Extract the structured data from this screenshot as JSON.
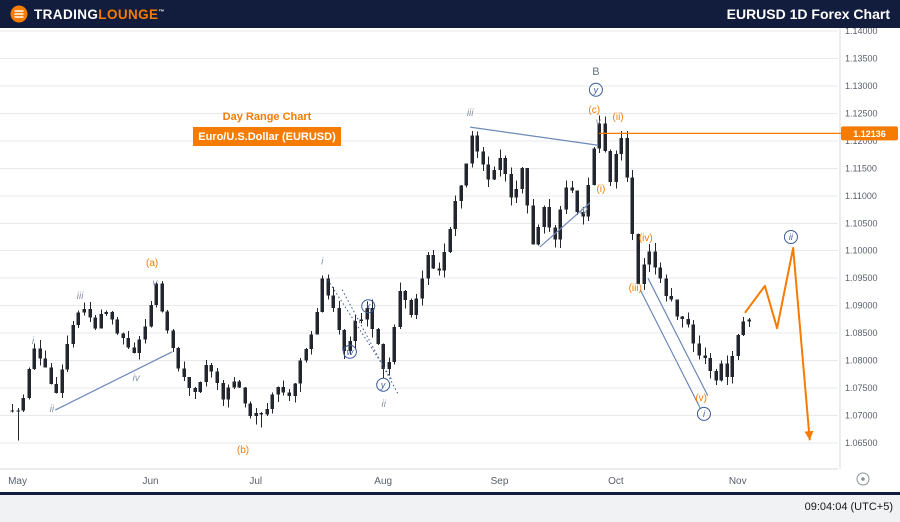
{
  "header": {
    "logo": {
      "part1": "TRADING",
      "part2": "LOUNGE",
      "tm": "™",
      "icon": "tradinglounge-logo-icon"
    },
    "title": "EURUSD 1D Forex Chart"
  },
  "overlays": {
    "day_range_label": "Day Range Chart",
    "instrument_label": "Euro/U.S.Dollar (EURUSD)"
  },
  "footer": {
    "timestamp": "09:04:04 (UTC+5)"
  },
  "colors": {
    "accent": "#F57C00",
    "header_bg": "#121C3D",
    "candle": "#23262E",
    "grid": "#E8E9EC",
    "axis_line": "#D6D8DC",
    "axis_text": "#5A5F6A",
    "wave_gray": "#8A93A6",
    "wave_dark": "#6A7280",
    "navy": "#3D5A99",
    "trendline": "#6E88B8",
    "footer_bg": "#F1F2F4"
  },
  "chart_data": {
    "type": "candlestick",
    "title": "EURUSD 1D Forex Chart",
    "instrument": "Euro/U.S.Dollar (EURUSD)",
    "timeframe": "1D",
    "subtitle": "Day Range Chart",
    "grid": "horizontal",
    "y_axis": {
      "min": 1.065,
      "max": 1.14,
      "tick_step": 0.005,
      "ticks": [
        "1.14000",
        "1.13500",
        "1.13000",
        "1.12500",
        "1.12000",
        "1.11500",
        "1.11000",
        "1.10500",
        "1.10000",
        "1.09500",
        "1.09000",
        "1.08500",
        "1.08000",
        "1.07500",
        "1.07000",
        "1.06500"
      ]
    },
    "x_axis": {
      "months": [
        {
          "label": "May",
          "i": 1
        },
        {
          "label": "Jun",
          "i": 25
        },
        {
          "label": "Jul",
          "i": 44
        },
        {
          "label": "Aug",
          "i": 67
        },
        {
          "label": "Sep",
          "i": 88
        },
        {
          "label": "Oct",
          "i": 109
        },
        {
          "label": "Nov",
          "i": 131
        }
      ]
    },
    "current_price": {
      "value": "1.12136",
      "from_index": 106
    },
    "candles": {
      "count": 134,
      "noise": 0.0011,
      "wick": 0.0016,
      "anchors": [
        [
          0,
          1.072
        ],
        [
          1,
          1.07
        ],
        [
          4,
          1.0825
        ],
        [
          8,
          1.0745
        ],
        [
          12,
          1.0895
        ],
        [
          15,
          1.086
        ],
        [
          17,
          1.089
        ],
        [
          20,
          1.0835
        ],
        [
          22,
          1.081
        ],
        [
          24,
          1.087
        ],
        [
          26,
          1.094
        ],
        [
          27,
          1.09
        ],
        [
          29,
          1.0825
        ],
        [
          30,
          1.0775
        ],
        [
          33,
          1.0745
        ],
        [
          35,
          1.079
        ],
        [
          38,
          1.073
        ],
        [
          40,
          1.076
        ],
        [
          43,
          1.0705
        ],
        [
          45,
          1.0695
        ],
        [
          48,
          1.076
        ],
        [
          50,
          1.074
        ],
        [
          53,
          1.082
        ],
        [
          55,
          1.088
        ],
        [
          56,
          1.095
        ],
        [
          58,
          1.09
        ],
        [
          60,
          1.0825
        ],
        [
          64,
          1.0905
        ],
        [
          67,
          1.079
        ],
        [
          68,
          1.08
        ],
        [
          70,
          1.093
        ],
        [
          72,
          1.089
        ],
        [
          75,
          1.099
        ],
        [
          77,
          1.096
        ],
        [
          79,
          1.105
        ],
        [
          81,
          1.112
        ],
        [
          83,
          1.1215
        ],
        [
          84,
          1.119
        ],
        [
          86,
          1.113
        ],
        [
          88,
          1.117
        ],
        [
          90,
          1.109
        ],
        [
          92,
          1.115
        ],
        [
          94,
          1.1005
        ],
        [
          96,
          1.107
        ],
        [
          98,
          1.103
        ],
        [
          100,
          1.112
        ],
        [
          102,
          1.108
        ],
        [
          103,
          1.107
        ],
        [
          104,
          1.112
        ],
        [
          106,
          1.1235
        ],
        [
          107,
          1.118
        ],
        [
          108,
          1.112
        ],
        [
          110,
          1.1212
        ],
        [
          111,
          1.113
        ],
        [
          112,
          1.104
        ],
        [
          113,
          1.095
        ],
        [
          115,
          1.1
        ],
        [
          117,
          1.094
        ],
        [
          119,
          1.09
        ],
        [
          121,
          1.087
        ],
        [
          123,
          1.084
        ],
        [
          125,
          1.08
        ],
        [
          127,
          1.077
        ],
        [
          128,
          1.0785
        ],
        [
          129,
          1.0775
        ],
        [
          130,
          1.081
        ],
        [
          131,
          1.084
        ],
        [
          132,
          1.0865
        ],
        [
          133,
          1.0885
        ]
      ],
      "wick_overrides": [
        [
          1,
          "low",
          1.0655
        ],
        [
          45,
          "low",
          1.0678
        ],
        [
          67,
          "low",
          1.0768
        ],
        [
          106,
          "high",
          1.1246
        ],
        [
          127,
          "low",
          1.0756
        ]
      ]
    },
    "annotations": [
      {
        "text": "i",
        "i": 3.8,
        "p": 1.0836,
        "style": "gray"
      },
      {
        "text": "ii",
        "i": 7.2,
        "p": 1.0712,
        "style": "gray"
      },
      {
        "text": "iii",
        "i": 12.3,
        "p": 1.0918,
        "style": "gray"
      },
      {
        "text": "iv",
        "i": 22.4,
        "p": 1.0768,
        "style": "gray"
      },
      {
        "text": "v",
        "i": 25.8,
        "p": 1.0941,
        "style": "gray"
      },
      {
        "text": "i",
        "i": 56.0,
        "p": 1.098,
        "style": "gray"
      },
      {
        "text": "ii",
        "i": 67.1,
        "p": 1.0721,
        "style": "gray"
      },
      {
        "text": "iii",
        "i": 82.7,
        "p": 1.1251,
        "style": "gray"
      },
      {
        "text": "iv",
        "i": 103.2,
        "p": 1.1072,
        "style": "gray"
      },
      {
        "text": "v",
        "i": 105.8,
        "p": 1.1234,
        "style": "gray"
      },
      {
        "text": "B",
        "i": 105.4,
        "p": 1.1325,
        "style": "dark"
      },
      {
        "text": "(a)",
        "i": 25.3,
        "p": 1.0978,
        "style": "orange"
      },
      {
        "text": "(b)",
        "i": 41.7,
        "p": 1.0637,
        "style": "orange"
      },
      {
        "text": "(c)",
        "i": 105.1,
        "p": 1.1256,
        "style": "orange"
      },
      {
        "text": "(i)",
        "i": 106.3,
        "p": 1.1112,
        "style": "orange"
      },
      {
        "text": "(ii)",
        "i": 109.4,
        "p": 1.1243,
        "style": "orange"
      },
      {
        "text": "(iii)",
        "i": 112.5,
        "p": 1.0932,
        "style": "orange"
      },
      {
        "text": "(iv)",
        "i": 114.4,
        "p": 1.1023,
        "style": "orange"
      },
      {
        "text": "(v)",
        "i": 124.4,
        "p": 1.0732,
        "style": "orange"
      },
      {
        "text": "w",
        "i": 61.0,
        "p": 1.0816,
        "style": "circled"
      },
      {
        "text": "x",
        "i": 64.3,
        "p": 1.0899,
        "style": "circled"
      },
      {
        "text": "y",
        "i": 67.0,
        "p": 1.0756,
        "style": "circled"
      },
      {
        "text": "y",
        "i": 105.4,
        "p": 1.1293,
        "style": "circled"
      },
      {
        "text": "i",
        "i": 124.9,
        "p": 1.0703,
        "style": "circled"
      },
      {
        "text": "ii",
        "i": 140.6,
        "p": 1.1025,
        "style": "circled"
      }
    ],
    "trendlines": [
      {
        "from": [
          7.8,
          1.071
        ],
        "to": [
          28.9,
          1.0816
        ]
      },
      {
        "from": [
          82.7,
          1.1225
        ],
        "to": [
          105.8,
          1.1192
        ]
      },
      {
        "from": [
          95.3,
          1.1007
        ],
        "to": [
          104.3,
          1.1087
        ]
      },
      {
        "from": [
          114.8,
          1.095
        ],
        "to": [
          125.6,
          1.0736
        ]
      },
      {
        "from": [
          113.4,
          1.0929
        ],
        "to": [
          124.2,
          1.0714
        ]
      }
    ],
    "dotted_lines": [
      {
        "from": [
          57.0,
          1.0947
        ],
        "to": [
          68.6,
          1.0765
        ]
      },
      {
        "from": [
          59.6,
          1.0929
        ],
        "to": [
          69.7,
          1.0739
        ]
      }
    ],
    "projection": {
      "points": [
        [
          132.3,
          1.0887
        ],
        [
          135.9,
          1.0936
        ],
        [
          138.1,
          1.0859
        ],
        [
          141.0,
          1.1005
        ],
        [
          144.0,
          1.0655
        ]
      ]
    }
  }
}
